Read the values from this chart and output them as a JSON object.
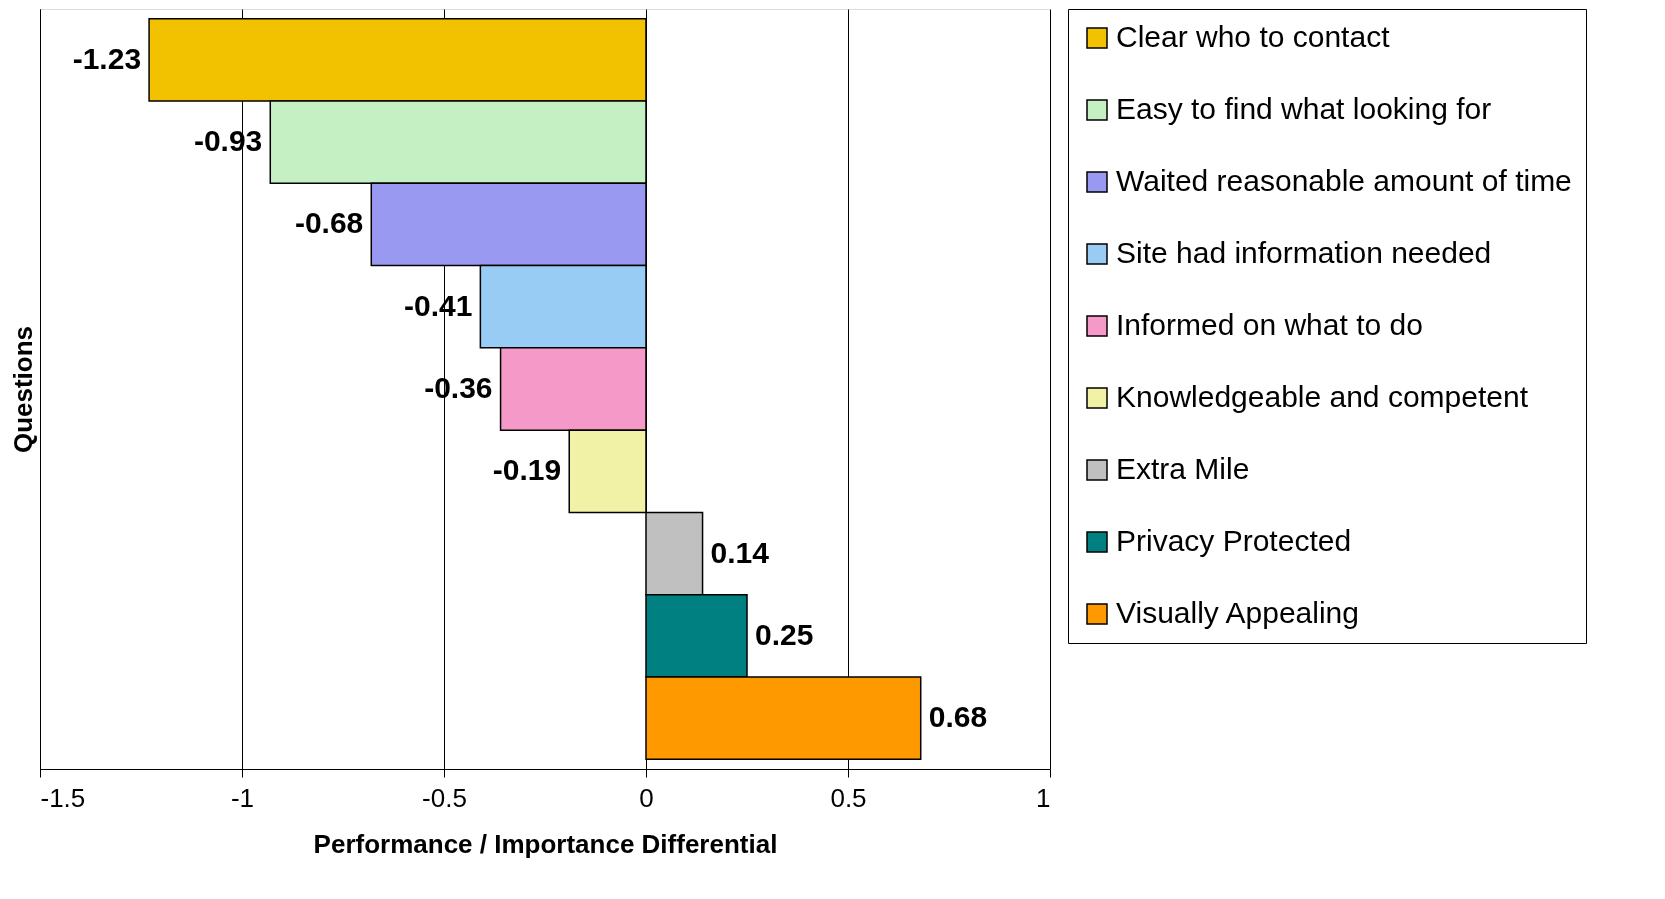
{
  "chart_data": {
    "type": "bar",
    "orientation": "horizontal",
    "categories": [
      null
    ],
    "xlabel": "Performance / Importance Differential",
    "ylabel": "Questions",
    "series": [
      {
        "name": "Clear who to contact",
        "color": "#f2c200",
        "values": [
          -1.23
        ]
      },
      {
        "name": "Easy to find what looking for",
        "color": "#c4f0c4",
        "values": [
          -0.93
        ]
      },
      {
        "name": "Waited reasonable amount of time",
        "color": "#9999f2",
        "values": [
          -0.68
        ]
      },
      {
        "name": "Site had information needed",
        "color": "#99ccf5",
        "values": [
          -0.41
        ]
      },
      {
        "name": "Informed on what to do",
        "color": "#f599c8",
        "values": [
          -0.36
        ]
      },
      {
        "name": "Knowledgeable and competent",
        "color": "#f2f2a6",
        "values": [
          -0.19
        ]
      },
      {
        "name": "Extra Mile",
        "color": "#c0c0c0",
        "values": [
          0.14
        ]
      },
      {
        "name": "Privacy Protected",
        "color": "#008080",
        "values": [
          0.25
        ]
      },
      {
        "name": "Visually Appealing",
        "color": "#ff9900",
        "values": [
          0.68
        ]
      }
    ],
    "xlim": [
      -1.5,
      1
    ],
    "xticks": [
      -1.5,
      -1,
      -0.5,
      0,
      0.5,
      1
    ],
    "grid": "x",
    "legend": "right",
    "data_labels": true
  }
}
